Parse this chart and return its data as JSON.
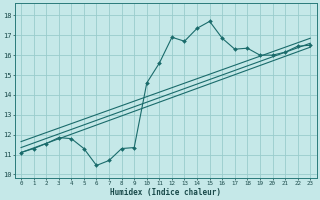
{
  "bg_color": "#c5e8e8",
  "line_color": "#1a6b6b",
  "grid_color": "#99cccc",
  "xlabel": "Humidex (Indice chaleur)",
  "xlim": [
    -0.5,
    23.5
  ],
  "ylim": [
    9.8,
    18.6
  ],
  "yticks": [
    10,
    11,
    12,
    13,
    14,
    15,
    16,
    17,
    18
  ],
  "xticks": [
    0,
    1,
    2,
    3,
    4,
    5,
    6,
    7,
    8,
    9,
    10,
    11,
    12,
    13,
    14,
    15,
    16,
    17,
    18,
    19,
    20,
    21,
    22,
    23
  ],
  "line1_x": [
    0,
    1,
    2,
    3,
    4,
    5,
    6,
    7,
    8,
    9,
    10,
    11,
    12,
    13,
    14,
    15,
    16,
    17,
    18,
    19,
    20,
    21,
    22,
    23
  ],
  "line1_y": [
    11.1,
    11.3,
    11.55,
    11.85,
    11.8,
    11.3,
    10.45,
    10.7,
    11.3,
    11.35,
    14.6,
    15.6,
    16.9,
    16.7,
    17.35,
    17.7,
    16.85,
    16.3,
    16.35,
    16.0,
    16.0,
    16.15,
    16.45,
    16.5
  ],
  "line2_x": [
    0,
    23
  ],
  "line2_y": [
    11.1,
    16.4
  ],
  "line3_x": [
    0,
    23
  ],
  "line3_y": [
    11.35,
    16.6
  ],
  "line4_x": [
    0,
    23
  ],
  "line4_y": [
    11.65,
    16.85
  ]
}
